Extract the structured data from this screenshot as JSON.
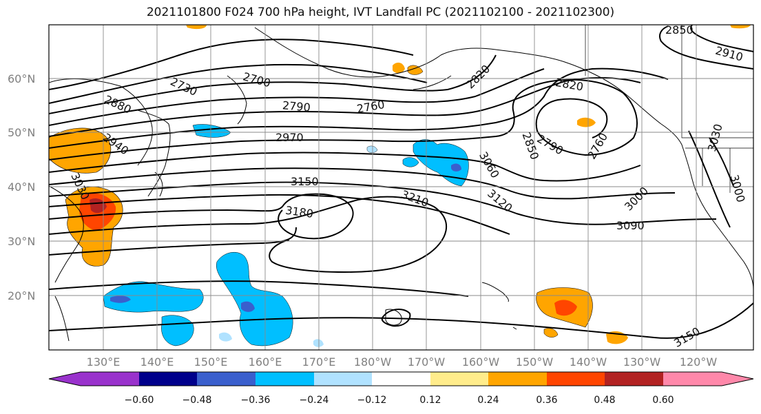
{
  "title": "2021101800 F024 700 hPa height, IVT Landfall PC (2021102100 - 2021102300)",
  "lat_labels": [
    "60°N",
    "50°N",
    "40°N",
    "30°N",
    "20°N"
  ],
  "lon_labels": [
    "130°E",
    "140°E",
    "150°E",
    "160°E",
    "170°E",
    "180°W",
    "170°W",
    "160°W",
    "150°W",
    "140°W",
    "130°W",
    "120°W"
  ],
  "contour_labels": [
    "2850",
    "2910",
    "2820",
    "2820",
    "2730",
    "2700",
    "2790",
    "2760",
    "2880",
    "2970",
    "2940",
    "2760",
    "2790",
    "2850",
    "3030",
    "3060",
    "3030",
    "3000",
    "3000",
    "3150",
    "3180",
    "3210",
    "3120",
    "3090",
    "3150"
  ],
  "colorbar": {
    "ticks": [
      "−0.60",
      "−0.48",
      "−0.36",
      "−0.24",
      "−0.12",
      "0.12",
      "0.24",
      "0.36",
      "0.48",
      "0.60"
    ],
    "colors": [
      "#9932cc",
      "#00008b",
      "#3a5fcd",
      "#00bfff",
      "#b0e2ff",
      "#ffffff",
      "#ffec8b",
      "#ffa500",
      "#ff4500",
      "#b22222",
      "#ff88aa"
    ]
  }
}
